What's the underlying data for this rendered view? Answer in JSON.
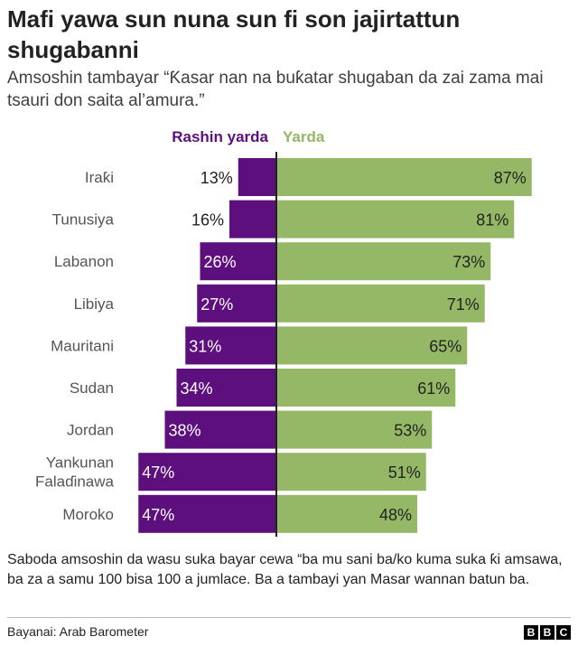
{
  "header": {
    "title": "Mafi yawa sun nuna sun fi son jajirtattun shugabanni",
    "subtitle": "Amsoshin tambayar “Ƙasar nan na buƙatar shugaban da zai zama mai tsauri don saita al’amura.”"
  },
  "colors": {
    "disagree": "#5c0f7d",
    "agree": "#95b866",
    "axis": "#222222"
  },
  "chart_data": {
    "type": "bar",
    "orientation": "horizontal-diverging",
    "categories": [
      "Iraƙi",
      "Tunusiya",
      "Labanon",
      "Libiya",
      "Mauritani",
      "Sudan",
      "Jordan",
      "Yankunan Falaɗinawa",
      "Moroko"
    ],
    "category_lines": [
      [
        "Iraƙi"
      ],
      [
        "Tunusiya"
      ],
      [
        "Labanon"
      ],
      [
        "Libiya"
      ],
      [
        "Mauritani"
      ],
      [
        "Sudan"
      ],
      [
        "Jordan"
      ],
      [
        "Yankunan",
        "Falaɗinawa"
      ],
      [
        "Moroko"
      ]
    ],
    "series": [
      {
        "name": "Rashin yarda",
        "values": [
          13,
          16,
          26,
          27,
          31,
          34,
          38,
          47,
          47
        ],
        "labels": [
          "13%",
          "16%",
          "26%",
          "27%",
          "31%",
          "34%",
          "38%",
          "47%",
          "47%"
        ]
      },
      {
        "name": "Yarda",
        "values": [
          87,
          81,
          73,
          71,
          65,
          61,
          53,
          51,
          48
        ],
        "labels": [
          "87%",
          "81%",
          "73%",
          "71%",
          "65%",
          "61%",
          "53%",
          "51%",
          "48%"
        ]
      }
    ],
    "unit": "%"
  },
  "footer": {
    "note": "Saboda amsoshin da wasu suka bayar cewa “ba mu sani ba/ko kuma suka ƙi amsawa, ba za a samu 100 bisa 100 a jumlace. Ba a tambayi yan Masar wannan batun ba.",
    "source": "Bayanai: Arab Barometer",
    "logo_letters": [
      "B",
      "B",
      "C"
    ]
  }
}
